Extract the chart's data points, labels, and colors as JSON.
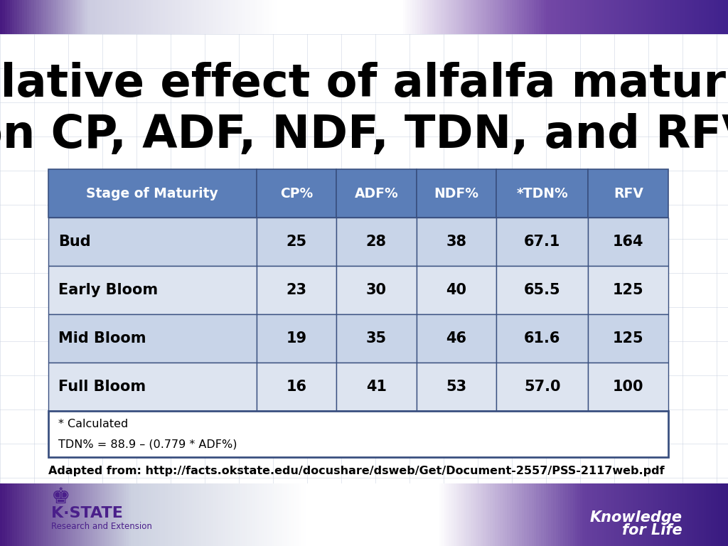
{
  "title_line1": "Relative effect of alfalfa maturity",
  "title_line2": "on CP, ADF, NDF, TDN, and RFV",
  "headers": [
    "Stage of Maturity",
    "CP%",
    "ADF%",
    "NDF%",
    "*TDN%",
    "RFV"
  ],
  "rows": [
    [
      "Bud",
      "25",
      "28",
      "38",
      "67.1",
      "164"
    ],
    [
      "Early Bloom",
      "23",
      "30",
      "40",
      "65.5",
      "125"
    ],
    [
      "Mid Bloom",
      "19",
      "35",
      "46",
      "61.6",
      "125"
    ],
    [
      "Full Bloom",
      "16",
      "41",
      "53",
      "57.0",
      "100"
    ]
  ],
  "footnote_line1": "* Calculated",
  "footnote_line2": "TDN% = 88.9 – (0.779 * ADF%)",
  "source_text": "Adapted from: http://facts.okstate.edu/docushare/dsweb/Get/Document-2557/PSS-2117web.pdf",
  "header_bg": "#5b7eb8",
  "header_text": "#ffffff",
  "row_odd_bg": "#c8d4e8",
  "row_even_bg": "#dde4f0",
  "footnote_bg": "#ffffff",
  "table_border": "#3a5080",
  "bg_color": "#ffffff",
  "title_color": "#000000",
  "source_color": "#000000",
  "grid_color": "#c8d0e0",
  "kstate_text_color": "#4a1f8a"
}
